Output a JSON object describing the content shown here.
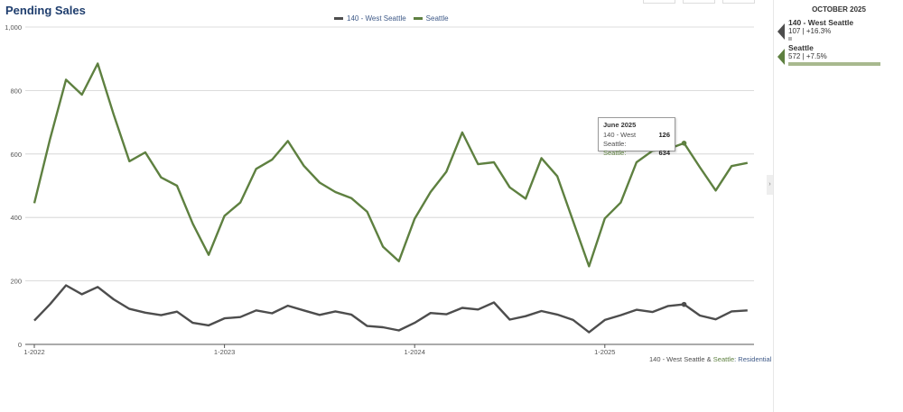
{
  "title": "Pending Sales",
  "panel": {
    "header": "OCTOBER 2025",
    "cards": [
      {
        "name": "140 - West Seattle",
        "value": "107 | +16.3%",
        "color": "#4d4d4d",
        "bar_fraction": 0.04
      },
      {
        "name": "Seattle",
        "value": "572 | +7.5%",
        "color": "#5e8040",
        "bar_fraction": 1.0
      }
    ]
  },
  "tooltip": {
    "title": "June 2025",
    "rows": [
      {
        "label": "140 - West Seattle:",
        "value": "126"
      },
      {
        "label": "Seattle:",
        "value": "634"
      }
    ]
  },
  "footer": {
    "area": "140 - West Seattle",
    "amp": "&",
    "city": "Seattle",
    "type": ": Residential"
  },
  "chart_data": {
    "type": "line",
    "title": "Pending Sales",
    "x": [
      "1-2022",
      "2-2022",
      "3-2022",
      "4-2022",
      "5-2022",
      "6-2022",
      "7-2022",
      "8-2022",
      "9-2022",
      "10-2022",
      "11-2022",
      "12-2022",
      "1-2023",
      "2-2023",
      "3-2023",
      "4-2023",
      "5-2023",
      "6-2023",
      "7-2023",
      "8-2023",
      "9-2023",
      "10-2023",
      "11-2023",
      "12-2023",
      "1-2024",
      "2-2024",
      "3-2024",
      "4-2024",
      "5-2024",
      "6-2024",
      "7-2024",
      "8-2024",
      "9-2024",
      "10-2024",
      "11-2024",
      "12-2024",
      "1-2025",
      "2-2025",
      "3-2025",
      "4-2025",
      "5-2025",
      "6-2025",
      "7-2025",
      "8-2025",
      "9-2025",
      "10-2025"
    ],
    "x_tick_labels": [
      "1-2022",
      "1-2023",
      "1-2024",
      "1-2025"
    ],
    "ylim": [
      0,
      1000
    ],
    "y_ticks": [
      "0",
      "200",
      "400",
      "600",
      "800",
      "1,000"
    ],
    "grid": true,
    "legend_position": "top-center",
    "series": [
      {
        "name": "140 - West Seattle",
        "color": "#4d4d4d",
        "values": [
          75,
          127,
          186,
          158,
          181,
          142,
          112,
          100,
          92,
          103,
          68,
          60,
          82,
          86,
          107,
          98,
          122,
          107,
          93,
          104,
          94,
          58,
          54,
          44,
          68,
          99,
          95,
          115,
          110,
          132,
          78,
          89,
          105,
          94,
          77,
          38,
          77,
          92,
          109,
          102,
          121,
          126,
          91,
          79,
          104,
          107
        ]
      },
      {
        "name": "Seattle",
        "color": "#5e8040",
        "values": [
          445,
          648,
          834,
          787,
          885,
          725,
          577,
          605,
          526,
          500,
          380,
          282,
          405,
          447,
          553,
          582,
          641,
          563,
          510,
          480,
          461,
          418,
          308,
          262,
          396,
          480,
          544,
          668,
          568,
          574,
          495,
          459,
          587,
          530,
          388,
          246,
          397,
          447,
          574,
          610,
          616,
          634,
          558,
          485,
          562,
          572
        ]
      }
    ]
  }
}
